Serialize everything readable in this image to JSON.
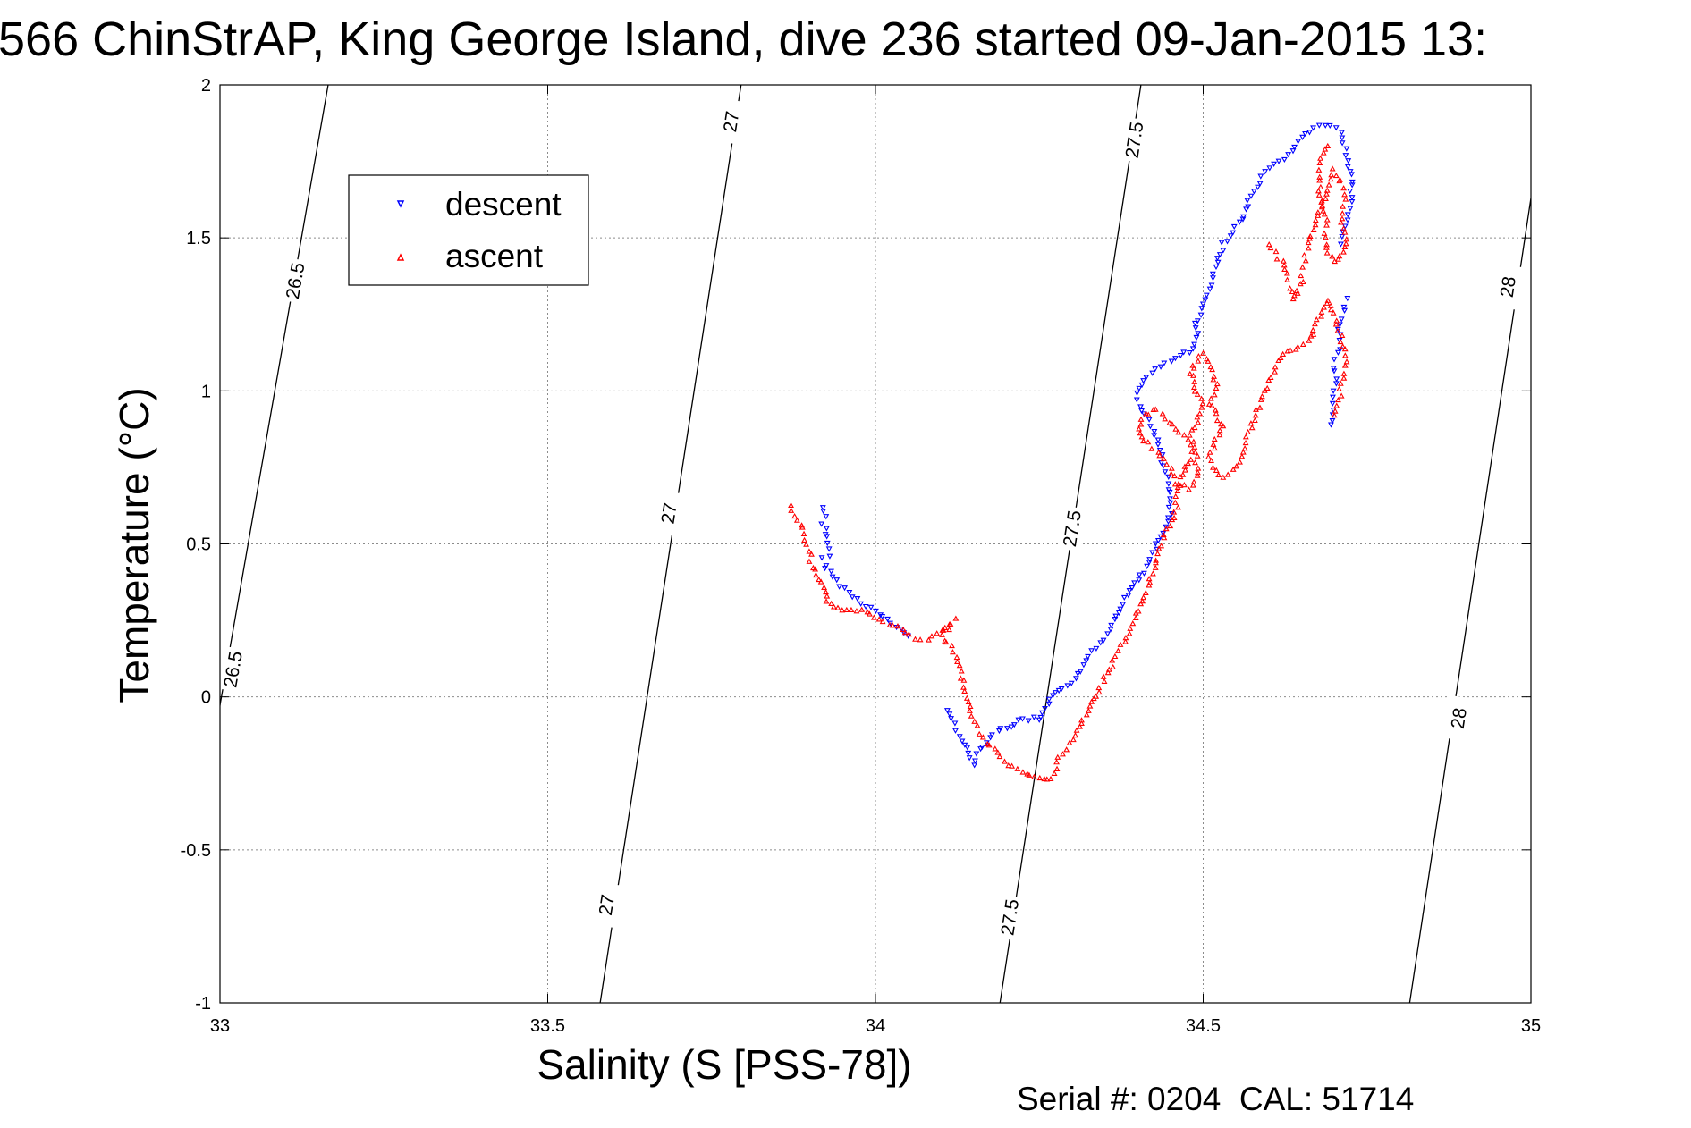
{
  "chart_data": {
    "type": "scatter",
    "title": "566 ChinStrAP, King George Island, dive 236 started 09-Jan-2015 13:",
    "xlabel": "Salinity (S [PSS-78])",
    "ylabel": "Temperature (°C)",
    "xlim": [
      33,
      35
    ],
    "ylim": [
      -1,
      2
    ],
    "grid": true,
    "x_ticks": [
      "33",
      "33.5",
      "34",
      "34.5",
      "35"
    ],
    "y_ticks": [
      "-1",
      "-0.5",
      "0",
      "0.5",
      "1",
      "1.5",
      "2"
    ],
    "legend_position": "top-left",
    "footer": "Serial #: 0204  CAL: 51714",
    "isopycnals": [
      {
        "label": "26.5",
        "line": [
          [
            32.99,
            -0.15
          ],
          [
            33.165,
            2.0
          ]
        ],
        "label_points": [
          [
            33.02,
            0.09
          ],
          [
            33.115,
            1.36
          ]
        ]
      },
      {
        "label": "27",
        "line": [
          [
            33.58,
            -1.0
          ],
          [
            33.795,
            2.0
          ]
        ],
        "label_points": [
          [
            33.59,
            -0.68
          ],
          [
            33.685,
            0.6
          ],
          [
            33.78,
            1.88
          ]
        ]
      },
      {
        "label": "27.5",
        "line": [
          [
            34.19,
            -1.0
          ],
          [
            34.405,
            2.0
          ]
        ],
        "label_points": [
          [
            34.205,
            -0.72
          ],
          [
            34.3,
            0.55
          ],
          [
            34.395,
            1.82
          ]
        ]
      },
      {
        "label": "28",
        "line": [
          [
            34.815,
            -1.0
          ],
          [
            35.0,
            1.63
          ]
        ],
        "label_points": [
          [
            34.89,
            -0.07
          ],
          [
            34.965,
            1.34
          ]
        ]
      }
    ],
    "series": [
      {
        "name": "descent",
        "color": "#0000ff",
        "marker": "triangle-down",
        "paths": [
          [
            [
              33.92,
              0.62
            ],
            [
              33.925,
              0.59
            ],
            [
              33.92,
              0.57
            ],
            [
              33.925,
              0.55
            ],
            [
              33.925,
              0.52
            ],
            [
              33.93,
              0.46
            ],
            [
              33.92,
              0.45
            ],
            [
              33.925,
              0.42
            ],
            [
              33.94,
              0.38
            ],
            [
              33.96,
              0.34
            ],
            [
              34.0,
              0.28
            ],
            [
              34.05,
              0.2
            ]
          ],
          [
            [
              34.11,
              -0.04
            ],
            [
              34.12,
              -0.09
            ],
            [
              34.13,
              -0.14
            ],
            [
              34.14,
              -0.17
            ],
            [
              34.145,
              -0.2
            ],
            [
              34.15,
              -0.22
            ],
            [
              34.16,
              -0.17
            ],
            [
              34.18,
              -0.12
            ],
            [
              34.2,
              -0.1
            ],
            [
              34.22,
              -0.08
            ],
            [
              34.24,
              -0.07
            ],
            [
              34.25,
              -0.08
            ],
            [
              34.26,
              -0.04
            ],
            [
              34.27,
              0.0
            ],
            [
              34.28,
              0.02
            ],
            [
              34.3,
              0.05
            ],
            [
              34.32,
              0.1
            ],
            [
              34.33,
              0.15
            ],
            [
              34.35,
              0.19
            ],
            [
              34.36,
              0.24
            ],
            [
              34.37,
              0.28
            ],
            [
              34.38,
              0.32
            ],
            [
              34.39,
              0.36
            ],
            [
              34.41,
              0.41
            ],
            [
              34.42,
              0.45
            ],
            [
              34.43,
              0.5
            ],
            [
              34.44,
              0.54
            ],
            [
              34.45,
              0.6
            ],
            [
              34.45,
              0.68
            ],
            [
              34.44,
              0.75
            ],
            [
              34.43,
              0.84
            ],
            [
              34.42,
              0.89
            ],
            [
              34.4,
              0.97
            ],
            [
              34.4,
              1.01
            ],
            [
              34.42,
              1.06
            ],
            [
              34.45,
              1.1
            ],
            [
              34.48,
              1.13
            ],
            [
              34.49,
              1.17
            ],
            [
              34.49,
              1.22
            ],
            [
              34.5,
              1.28
            ],
            [
              34.51,
              1.33
            ],
            [
              34.52,
              1.4
            ],
            [
              34.53,
              1.48
            ],
            [
              34.54,
              1.51
            ],
            [
              34.56,
              1.56
            ],
            [
              34.57,
              1.62
            ],
            [
              34.58,
              1.65
            ],
            [
              34.59,
              1.7
            ],
            [
              34.61,
              1.74
            ],
            [
              34.625,
              1.76
            ],
            [
              34.64,
              1.8
            ],
            [
              34.655,
              1.84
            ],
            [
              34.67,
              1.86
            ],
            [
              34.685,
              1.87
            ],
            [
              34.695,
              1.87
            ],
            [
              34.705,
              1.86
            ],
            [
              34.71,
              1.84
            ],
            [
              34.715,
              1.81
            ],
            [
              34.72,
              1.77
            ],
            [
              34.725,
              1.72
            ],
            [
              34.725,
              1.67
            ],
            [
              34.725,
              1.6
            ],
            [
              34.72,
              1.56
            ],
            [
              34.715,
              1.52
            ],
            [
              34.71,
              1.48
            ]
          ],
          [
            [
              34.72,
              1.3
            ],
            [
              34.715,
              1.26
            ],
            [
              34.71,
              1.22
            ],
            [
              34.705,
              1.2
            ],
            [
              34.71,
              1.16
            ],
            [
              34.705,
              1.12
            ],
            [
              34.7,
              1.08
            ],
            [
              34.705,
              1.04
            ],
            [
              34.7,
              1.0
            ],
            [
              34.7,
              0.96
            ],
            [
              34.695,
              0.92
            ],
            [
              34.695,
              0.89
            ]
          ]
        ]
      },
      {
        "name": "ascent",
        "color": "#ff0000",
        "marker": "triangle-up",
        "paths": [
          [
            [
              33.87,
              0.62
            ],
            [
              33.88,
              0.58
            ],
            [
              33.89,
              0.55
            ],
            [
              33.89,
              0.51
            ],
            [
              33.9,
              0.48
            ],
            [
              33.9,
              0.44
            ],
            [
              33.91,
              0.4
            ],
            [
              33.92,
              0.36
            ],
            [
              33.93,
              0.3
            ],
            [
              33.95,
              0.28
            ],
            [
              33.98,
              0.28
            ],
            [
              34.0,
              0.26
            ],
            [
              34.02,
              0.24
            ],
            [
              34.04,
              0.22
            ],
            [
              34.06,
              0.19
            ],
            [
              34.08,
              0.19
            ],
            [
              34.1,
              0.22
            ],
            [
              34.12,
              0.25
            ],
            [
              34.1,
              0.2
            ],
            [
              34.12,
              0.15
            ],
            [
              34.13,
              0.08
            ],
            [
              34.14,
              0.0
            ],
            [
              34.145,
              -0.05
            ],
            [
              34.155,
              -0.1
            ],
            [
              34.17,
              -0.15
            ],
            [
              34.19,
              -0.2
            ],
            [
              34.21,
              -0.23
            ],
            [
              34.23,
              -0.25
            ],
            [
              34.25,
              -0.26
            ],
            [
              34.27,
              -0.27
            ],
            [
              34.28,
              -0.2
            ],
            [
              34.3,
              -0.14
            ],
            [
              34.31,
              -0.1
            ],
            [
              34.32,
              -0.06
            ],
            [
              34.33,
              -0.02
            ],
            [
              34.34,
              0.02
            ],
            [
              34.35,
              0.06
            ],
            [
              34.36,
              0.1
            ],
            [
              34.37,
              0.15
            ],
            [
              34.38,
              0.18
            ],
            [
              34.39,
              0.22
            ],
            [
              34.4,
              0.27
            ],
            [
              34.41,
              0.33
            ],
            [
              34.42,
              0.39
            ],
            [
              34.43,
              0.45
            ],
            [
              34.44,
              0.53
            ],
            [
              34.45,
              0.56
            ],
            [
              34.46,
              0.62
            ],
            [
              34.46,
              0.7
            ],
            [
              34.45,
              0.75
            ],
            [
              34.43,
              0.8
            ],
            [
              34.41,
              0.84
            ],
            [
              34.4,
              0.88
            ],
            [
              34.41,
              0.92
            ],
            [
              34.43,
              0.94
            ],
            [
              34.45,
              0.9
            ],
            [
              34.47,
              0.85
            ],
            [
              34.48,
              0.82
            ],
            [
              34.48,
              0.78
            ],
            [
              34.47,
              0.74
            ],
            [
              34.46,
              0.7
            ],
            [
              34.48,
              0.68
            ],
            [
              34.49,
              0.72
            ],
            [
              34.49,
              0.8
            ],
            [
              34.48,
              0.85
            ],
            [
              34.49,
              0.9
            ],
            [
              34.5,
              0.94
            ],
            [
              34.49,
              1.0
            ],
            [
              34.48,
              1.06
            ],
            [
              34.49,
              1.1
            ],
            [
              34.5,
              1.12
            ],
            [
              34.51,
              1.08
            ],
            [
              34.52,
              1.02
            ],
            [
              34.51,
              0.96
            ],
            [
              34.52,
              0.92
            ],
            [
              34.53,
              0.88
            ],
            [
              34.52,
              0.84
            ],
            [
              34.51,
              0.78
            ],
            [
              34.52,
              0.74
            ],
            [
              34.53,
              0.72
            ],
            [
              34.55,
              0.75
            ],
            [
              34.56,
              0.8
            ],
            [
              34.57,
              0.86
            ],
            [
              34.58,
              0.92
            ],
            [
              34.59,
              0.98
            ],
            [
              34.6,
              1.03
            ],
            [
              34.61,
              1.08
            ],
            [
              34.62,
              1.12
            ],
            [
              34.64,
              1.14
            ],
            [
              34.66,
              1.16
            ],
            [
              34.67,
              1.2
            ],
            [
              34.68,
              1.26
            ],
            [
              34.69,
              1.3
            ],
            [
              34.7,
              1.25
            ],
            [
              34.71,
              1.18
            ],
            [
              34.72,
              1.1
            ],
            [
              34.715,
              1.04
            ],
            [
              34.71,
              1.0
            ],
            [
              34.705,
              0.95
            ],
            [
              34.7,
              0.92
            ]
          ],
          [
            [
              34.6,
              1.48
            ],
            [
              34.61,
              1.45
            ],
            [
              34.62,
              1.42
            ],
            [
              34.63,
              1.38
            ],
            [
              34.63,
              1.34
            ],
            [
              34.64,
              1.3
            ],
            [
              34.65,
              1.36
            ],
            [
              34.655,
              1.42
            ],
            [
              34.66,
              1.48
            ],
            [
              34.67,
              1.54
            ],
            [
              34.68,
              1.6
            ],
            [
              34.69,
              1.66
            ],
            [
              34.7,
              1.72
            ],
            [
              34.71,
              1.68
            ],
            [
              34.715,
              1.62
            ],
            [
              34.71,
              1.56
            ],
            [
              34.72,
              1.5
            ],
            [
              34.715,
              1.45
            ],
            [
              34.7,
              1.42
            ],
            [
              34.69,
              1.45
            ],
            [
              34.685,
              1.5
            ],
            [
              34.69,
              1.56
            ],
            [
              34.68,
              1.62
            ],
            [
              34.675,
              1.7
            ],
            [
              34.68,
              1.76
            ],
            [
              34.69,
              1.8
            ]
          ]
        ]
      }
    ]
  }
}
